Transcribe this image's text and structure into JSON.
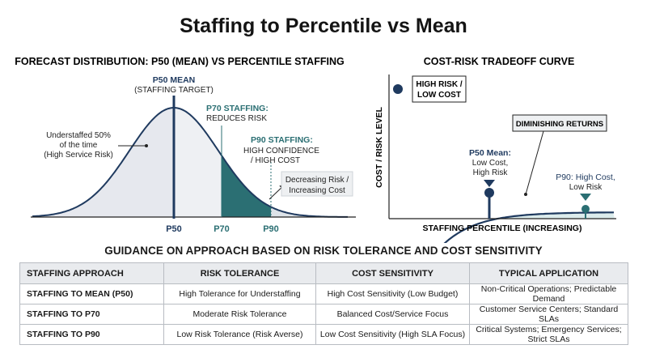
{
  "title": "Staffing to Percentile vs Mean",
  "left_chart": {
    "heading": "FORECAST DISTRIBUTION: P50 (MEAN) VS PERCENTILE STAFFING",
    "p50_label_1": "P50 MEAN",
    "p50_label_2": "(STAFFING TARGET)",
    "p70_label_1": "P70 STAFFING:",
    "p70_label_2": "REDUCES RISK",
    "p90_label_1": "P90 STAFFING:",
    "p90_label_2": "HIGH CONFIDENCE",
    "p90_label_3": "/ HIGH COST",
    "under_1": "Understaffed 50%",
    "under_2": "of the time",
    "under_3": "(High Service Risk)",
    "decr_1": "Decreasing Risk /",
    "decr_2": "Increasing Cost",
    "ticks": [
      "P50",
      "P70",
      "P90"
    ]
  },
  "right_chart": {
    "heading": "COST-RISK TRADEOFF CURVE",
    "ylabel": "COST / RISK LEVEL",
    "xlabel": "STAFFING PERCENTILE (INCREASING)",
    "high_risk_1": "HIGH RISK /",
    "high_risk_2": "LOW COST",
    "diminishing": "DIMINISHING RETURNS",
    "p50_1": "P50 Mean:",
    "p50_2": "Low Cost,",
    "p50_3": "High Risk",
    "p90_1": "P90: High Cost,",
    "p90_2": "Low Risk"
  },
  "section_heading": "GUIDANCE ON APPROACH BASED ON RISK TOLERANCE AND COST SENSITIVITY",
  "table": {
    "headers": [
      "STAFFING APPROACH",
      "RISK TOLERANCE",
      "COST SENSITIVITY",
      "TYPICAL APPLICATION"
    ],
    "rows": [
      [
        "STAFFING TO MEAN (P50)",
        "High Tolerance for Understaffing",
        "High Cost Sensitivity (Low Budget)",
        "Non-Critical Operations; Predictable Demand",
        ""
      ],
      [
        "STAFFING TO P70",
        "Moderate Risk Tolerance",
        "Balanced Cost/Service Focus",
        "Customer Service Centers; Standard SLAs",
        ""
      ],
      [
        "STAFFING TO P90",
        "Low Risk Tolerance (Risk Averse)",
        "Low Cost Sensitivity (High SLA Focus)",
        "Critical Systems; Emergency Services;",
        "Strict SLAs"
      ]
    ]
  },
  "colors": {
    "navy": "#1f3a5f",
    "teal": "#2b6f73",
    "light_fill": "#e6e8ee",
    "light_teal": "#dcecec"
  }
}
